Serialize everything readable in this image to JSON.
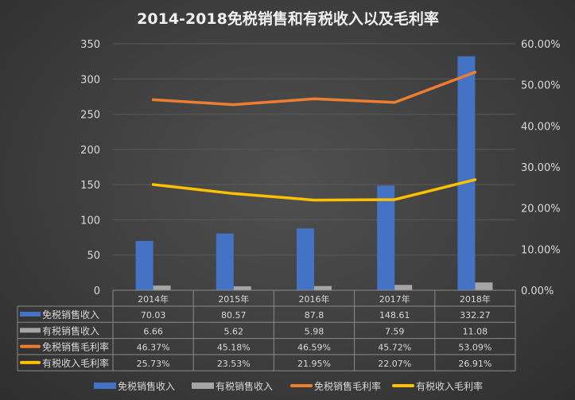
{
  "chart_data": {
    "type": "bar+line",
    "title": "2014-2018免税销售和有税收入以及毛利率",
    "categories": [
      "2014年",
      "2015年",
      "2016年",
      "2017年",
      "2018年"
    ],
    "series": [
      {
        "name": "免税销售收入",
        "type": "bar",
        "axis": "left",
        "color": "#4472c4",
        "values": [
          70.03,
          80.57,
          87.8,
          148.61,
          332.27
        ],
        "labels": [
          "70.03",
          "80.57",
          "87.8",
          "148.61",
          "332.27"
        ]
      },
      {
        "name": "有税销售收入",
        "type": "bar",
        "axis": "left",
        "color": "#a5a5a5",
        "values": [
          6.66,
          5.62,
          5.98,
          7.59,
          11.08
        ],
        "labels": [
          "6.66",
          "5.62",
          "5.98",
          "7.59",
          "11.08"
        ]
      },
      {
        "name": "免税销售毛利率",
        "type": "line",
        "axis": "right",
        "color": "#ed7d31",
        "values": [
          46.37,
          45.18,
          46.59,
          45.72,
          53.09
        ],
        "labels": [
          "46.37%",
          "45.18%",
          "46.59%",
          "45.72%",
          "53.09%"
        ]
      },
      {
        "name": "有税收入毛利率",
        "type": "line",
        "axis": "right",
        "color": "#ffc000",
        "values": [
          25.73,
          23.53,
          21.95,
          22.07,
          26.91
        ],
        "labels": [
          "25.73%",
          "23.53%",
          "21.95%",
          "22.07%",
          "26.91%"
        ]
      }
    ],
    "y_left": {
      "range": [
        0,
        350
      ],
      "ticks": [
        "0",
        "50",
        "100",
        "150",
        "200",
        "250",
        "300",
        "350"
      ]
    },
    "y_right": {
      "range": [
        0,
        60
      ],
      "ticks": [
        "0.00%",
        "10.00%",
        "20.00%",
        "30.00%",
        "40.00%",
        "50.00%",
        "60.00%"
      ]
    },
    "grid": true,
    "data_table": true,
    "legend": "bottom"
  }
}
